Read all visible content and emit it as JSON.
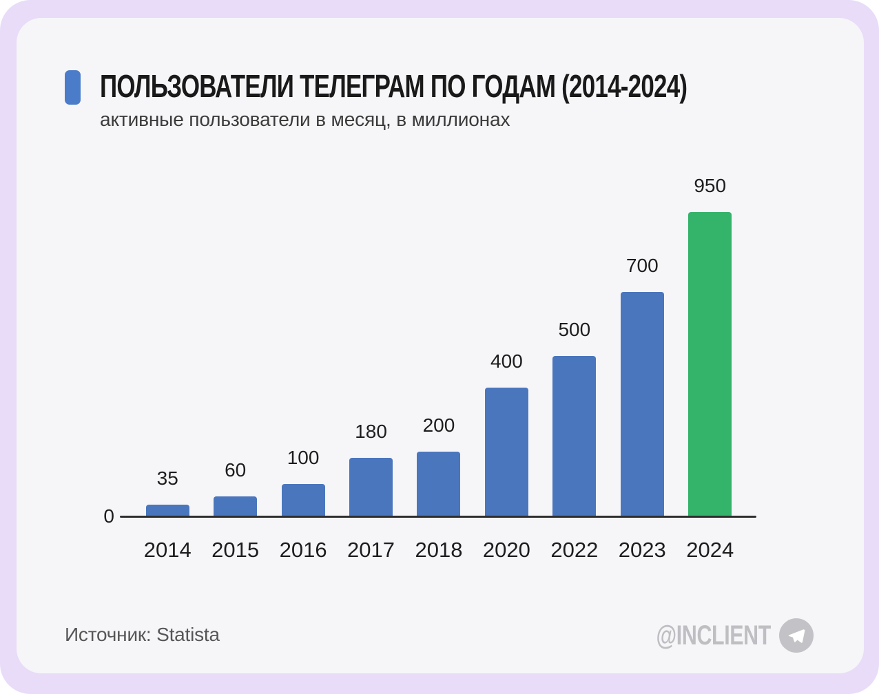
{
  "chart_data": {
    "type": "bar",
    "title": "ПОЛЬЗОВАТЕЛИ ТЕЛЕГРАМ ПО ГОДАМ (2014-2024)",
    "subtitle": "активные пользователи в месяц, в миллионах",
    "categories": [
      "2014",
      "2015",
      "2016",
      "2017",
      "2018",
      "2020",
      "2022",
      "2023",
      "2024"
    ],
    "values": [
      35,
      60,
      100,
      180,
      200,
      400,
      500,
      700,
      950
    ],
    "ylim": [
      0,
      950
    ],
    "baseline_tick_label": "0",
    "grid": false,
    "legend": "none",
    "value_labels_shown": true,
    "highlight_index": 8,
    "bar_color": "#4a76bd",
    "highlight_color": "#34b46a"
  },
  "footer": {
    "source": "Источник: Statista",
    "watermark": "@INCLIENT",
    "watermark_icon": "telegram-plane"
  },
  "colors": {
    "page_bg": "#ffffff",
    "frame_bg": "#e9dcf8",
    "card_bg": "#f6f6f9",
    "accent": "#4b7cc9",
    "axis": "#2e2e2e",
    "title_text": "#191919",
    "subtitle_text": "#3c3c3c",
    "label_text": "#1d1d1d",
    "source_text": "#565656",
    "watermark_text": "#bfbfc3",
    "watermark_circle": "#c3c3c7"
  }
}
